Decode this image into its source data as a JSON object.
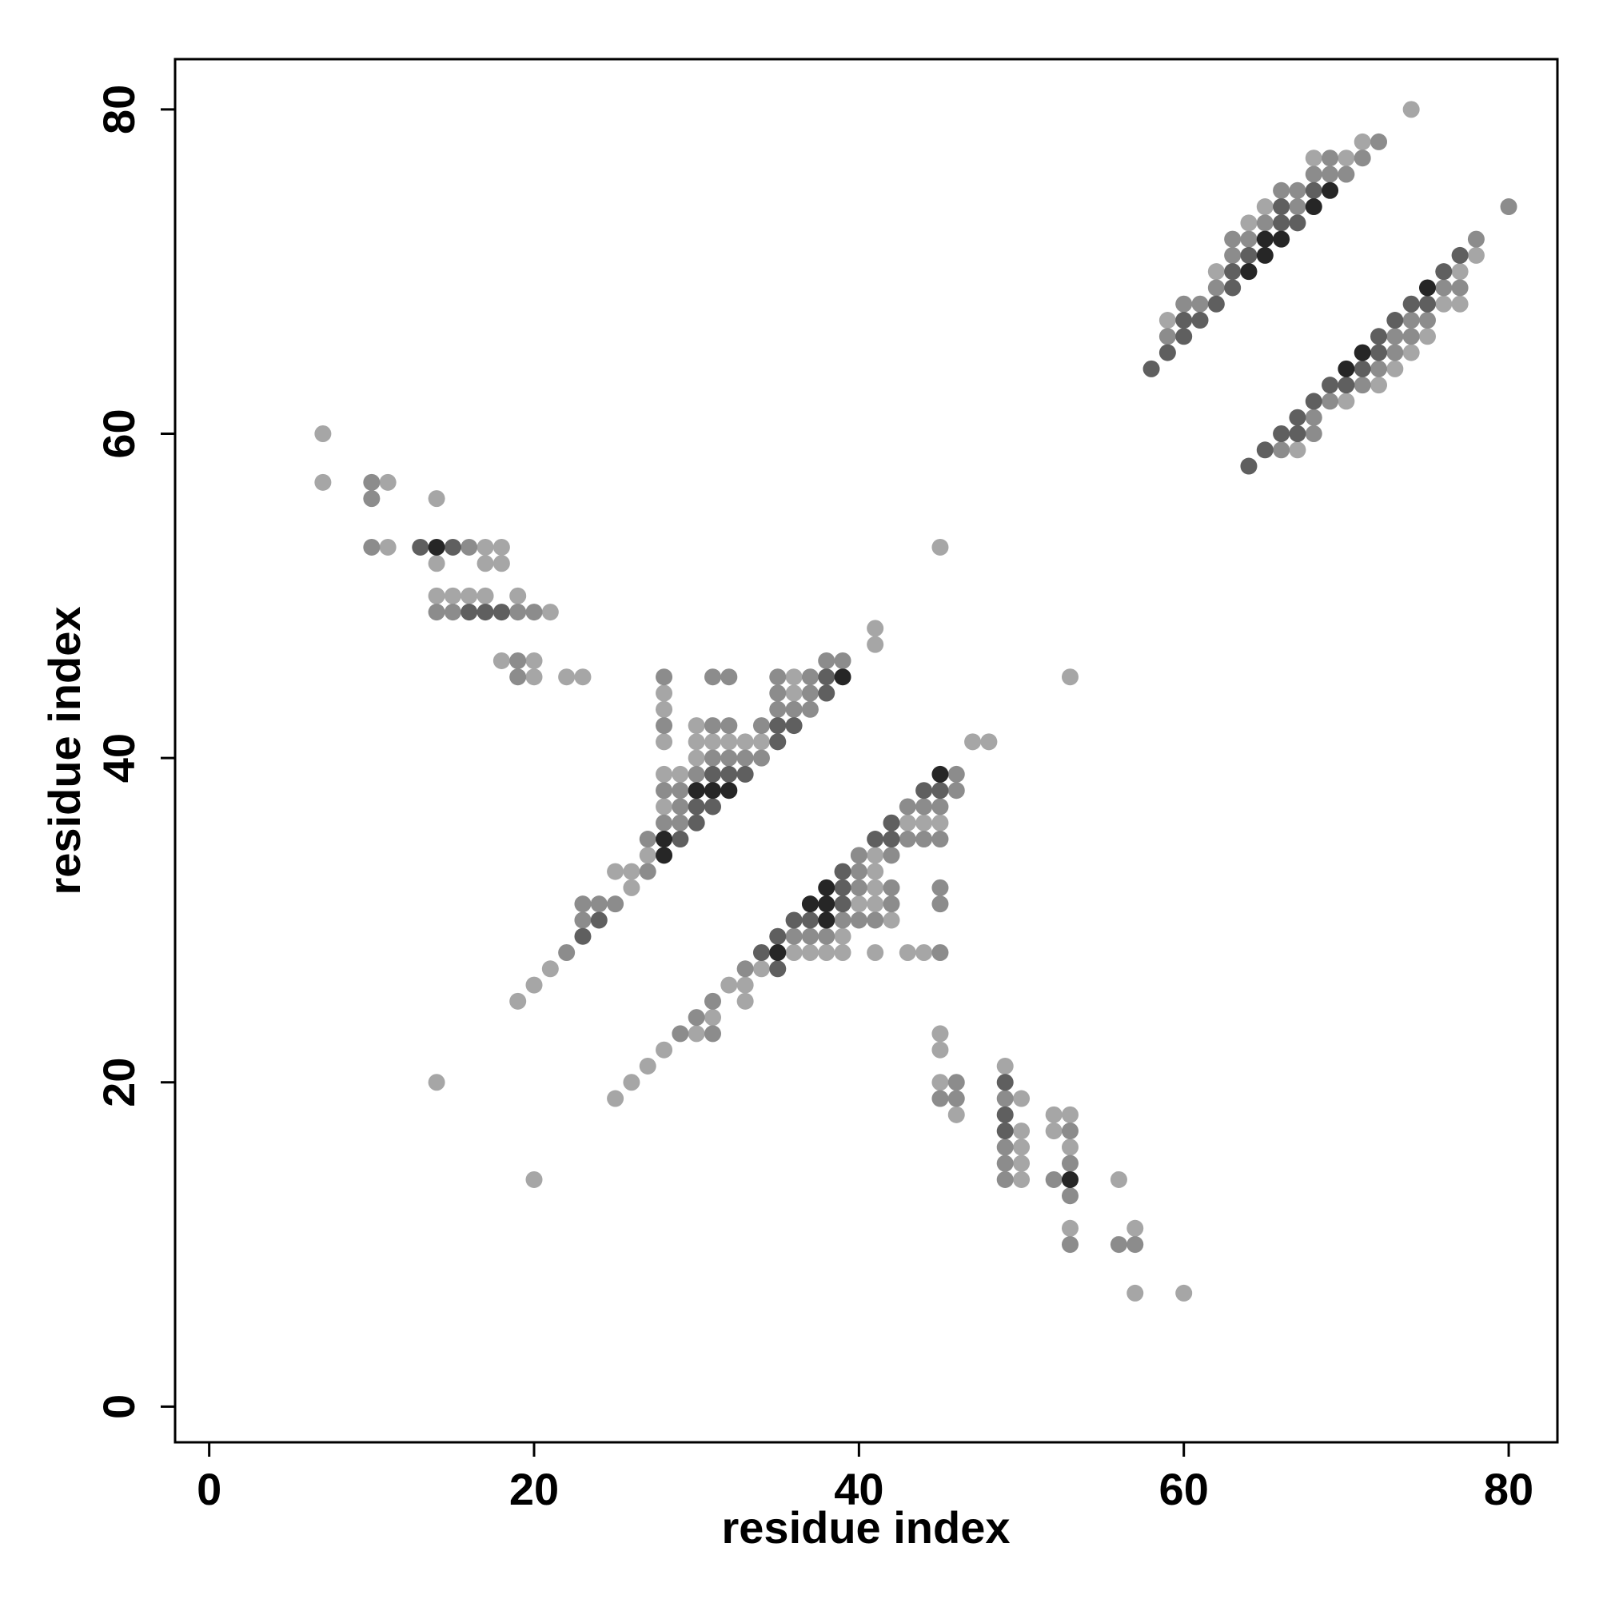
{
  "chart_data": {
    "type": "scatter",
    "x_label": "residue index",
    "y_label": "residue index",
    "xlim": [
      -2.1,
      83.0
    ],
    "ylim": [
      -2.2,
      83.1
    ],
    "xticks": [
      0,
      20,
      40,
      60,
      80
    ],
    "yticks": [
      0,
      20,
      40,
      60,
      80
    ],
    "series": [
      {
        "color": "#a6a6a6",
        "x": [
          59,
          62,
          64,
          65,
          68,
          70,
          71,
          74,
          67,
          70,
          72,
          73,
          74,
          75,
          76,
          77,
          77,
          78,
          7,
          7,
          11,
          14,
          11,
          17,
          18,
          14,
          17,
          18,
          14,
          15,
          16,
          17,
          19,
          21,
          18,
          20,
          20,
          22,
          23,
          19,
          20,
          21,
          25,
          26,
          26,
          27,
          28,
          28,
          28,
          28,
          28,
          29,
          30,
          30,
          30,
          31,
          32,
          33,
          34,
          36,
          36,
          41,
          41,
          25,
          26,
          27,
          28,
          30,
          31,
          32,
          33,
          33,
          34,
          36,
          37,
          38,
          39,
          39,
          40,
          41,
          41,
          41,
          41,
          41,
          42,
          43,
          43,
          44,
          44,
          45,
          47,
          48,
          45,
          45,
          45,
          46,
          49,
          50,
          50,
          50,
          50,
          50,
          52,
          53,
          52,
          53,
          53,
          56,
          57,
          57,
          60,
          45,
          53,
          14,
          20
        ],
        "y": [
          67,
          70,
          73,
          74,
          77,
          77,
          78,
          80,
          59,
          62,
          63,
          64,
          65,
          66,
          68,
          68,
          70,
          71,
          60,
          57,
          57,
          56,
          53,
          53,
          53,
          52,
          52,
          52,
          50,
          50,
          50,
          50,
          50,
          49,
          46,
          46,
          45,
          45,
          45,
          25,
          26,
          27,
          33,
          32,
          33,
          34,
          37,
          39,
          41,
          43,
          44,
          39,
          40,
          41,
          42,
          41,
          41,
          41,
          41,
          44,
          45,
          47,
          48,
          19,
          20,
          21,
          22,
          23,
          24,
          26,
          25,
          26,
          27,
          28,
          28,
          28,
          28,
          29,
          31,
          28,
          31,
          32,
          33,
          34,
          30,
          28,
          36,
          28,
          36,
          36,
          41,
          41,
          23,
          22,
          20,
          18,
          21,
          19,
          17,
          16,
          15,
          14,
          18,
          18,
          17,
          16,
          11,
          14,
          11,
          7,
          7,
          53,
          45,
          20,
          14
        ]
      },
      {
        "color": "#8c8c8c",
        "x": [
          59,
          60,
          61,
          62,
          63,
          63,
          64,
          65,
          66,
          67,
          67,
          68,
          69,
          69,
          70,
          71,
          72,
          66,
          68,
          68,
          69,
          71,
          72,
          73,
          73,
          74,
          74,
          75,
          76,
          77,
          78,
          80,
          10,
          10,
          10,
          16,
          14,
          15,
          19,
          20,
          19,
          19,
          22,
          23,
          23,
          24,
          25,
          27,
          27,
          28,
          28,
          28,
          28,
          29,
          29,
          29,
          30,
          31,
          31,
          31,
          32,
          32,
          32,
          33,
          34,
          34,
          35,
          35,
          35,
          36,
          37,
          37,
          37,
          38,
          39,
          29,
          30,
          31,
          31,
          33,
          36,
          37,
          38,
          39,
          40,
          40,
          40,
          40,
          41,
          42,
          42,
          42,
          43,
          43,
          44,
          44,
          45,
          45,
          45,
          45,
          45,
          46,
          46,
          46,
          45,
          46,
          49,
          49,
          49,
          49,
          53,
          53,
          52,
          53,
          53,
          56,
          57
        ],
        "y": [
          66,
          68,
          68,
          69,
          71,
          72,
          72,
          73,
          75,
          74,
          75,
          76,
          76,
          77,
          76,
          77,
          78,
          59,
          60,
          61,
          62,
          63,
          64,
          65,
          66,
          66,
          67,
          67,
          69,
          69,
          72,
          74,
          57,
          56,
          53,
          53,
          49,
          49,
          49,
          49,
          46,
          45,
          28,
          30,
          31,
          31,
          31,
          33,
          35,
          36,
          38,
          42,
          45,
          36,
          37,
          38,
          39,
          40,
          42,
          45,
          40,
          42,
          45,
          40,
          40,
          42,
          43,
          44,
          45,
          43,
          43,
          44,
          45,
          46,
          46,
          23,
          24,
          23,
          25,
          27,
          29,
          29,
          29,
          30,
          30,
          32,
          33,
          34,
          30,
          31,
          32,
          34,
          35,
          37,
          35,
          37,
          28,
          31,
          32,
          35,
          37,
          38,
          39,
          20,
          19,
          19,
          19,
          16,
          15,
          14,
          17,
          15,
          14,
          13,
          10,
          10,
          10
        ]
      },
      {
        "color": "#5f5f5f",
        "x": [
          58,
          59,
          60,
          60,
          61,
          62,
          63,
          63,
          64,
          66,
          66,
          67,
          68,
          64,
          65,
          66,
          67,
          67,
          68,
          69,
          70,
          71,
          72,
          72,
          73,
          74,
          75,
          76,
          77,
          13,
          15,
          16,
          17,
          18,
          23,
          24,
          29,
          30,
          30,
          31,
          31,
          32,
          33,
          35,
          35,
          36,
          38,
          38,
          34,
          35,
          35,
          36,
          37,
          39,
          39,
          39,
          41,
          42,
          42,
          44,
          45,
          49,
          49,
          49
        ],
        "y": [
          64,
          65,
          66,
          67,
          67,
          68,
          69,
          70,
          71,
          73,
          74,
          73,
          75,
          58,
          59,
          60,
          60,
          61,
          62,
          63,
          63,
          64,
          65,
          66,
          67,
          68,
          68,
          70,
          71,
          53,
          53,
          49,
          49,
          49,
          29,
          30,
          35,
          36,
          37,
          37,
          39,
          39,
          39,
          41,
          42,
          42,
          44,
          45,
          28,
          27,
          29,
          30,
          30,
          31,
          32,
          33,
          35,
          35,
          36,
          38,
          38,
          20,
          18,
          17
        ]
      },
      {
        "color": "#262626",
        "x": [
          64,
          65,
          65,
          66,
          68,
          69,
          70,
          71,
          75,
          14,
          28,
          28,
          30,
          31,
          32,
          39,
          35,
          37,
          38,
          38,
          38,
          45,
          53
        ],
        "y": [
          70,
          71,
          72,
          72,
          74,
          75,
          64,
          65,
          69,
          53,
          34,
          35,
          38,
          38,
          38,
          45,
          28,
          31,
          30,
          31,
          32,
          39,
          14
        ]
      }
    ]
  }
}
